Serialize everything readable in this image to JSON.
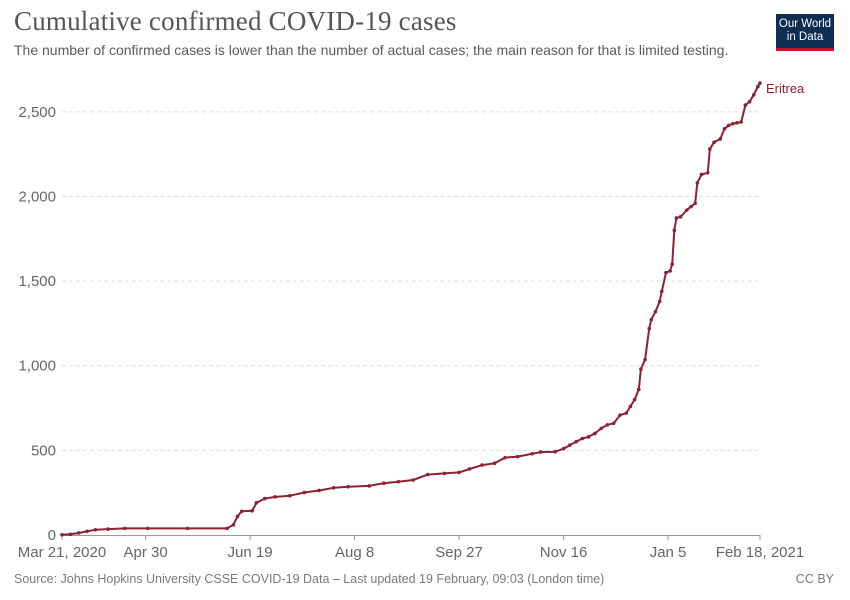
{
  "header": {
    "title": "Cumulative confirmed COVID-19 cases",
    "subtitle": "The number of confirmed cases is lower than the number of actual cases; the main reason for that is limited testing."
  },
  "logo": {
    "line1": "Our World",
    "line2": "in Data"
  },
  "footer": {
    "source": "Source: Johns Hopkins University CSSE COVID-19 Data – Last updated 19 February, 09:03 (London time)",
    "license": "CC BY"
  },
  "colors": {
    "series": "#8b2332",
    "grid": "#dddddd",
    "logo_bg": "#0e2d52",
    "logo_accent": "#c8102e"
  },
  "chart_data": {
    "type": "line",
    "title": "Cumulative confirmed COVID-19 cases",
    "subtitle": "The number of confirmed cases is lower than the number of actual cases; the main reason for that is limited testing.",
    "xlabel": "",
    "ylabel": "",
    "ylim": [
      0,
      2700
    ],
    "yticks": [
      0,
      500,
      1000,
      1500,
      2000,
      2500
    ],
    "ytick_labels": [
      "0",
      "500",
      "1,000",
      "1,500",
      "2,000",
      "2,500"
    ],
    "xlim": [
      "2020-03-21",
      "2021-02-18"
    ],
    "xticks": [
      "2020-03-21",
      "2020-04-30",
      "2020-06-19",
      "2020-08-08",
      "2020-09-27",
      "2020-11-16",
      "2021-01-05",
      "2021-02-18"
    ],
    "xtick_labels": [
      "Mar 21, 2020",
      "Apr 30",
      "Jun 19",
      "Aug 8",
      "Sep 27",
      "Nov 16",
      "Jan 5",
      "Feb 18, 2021"
    ],
    "grid": "horizontal dashed",
    "legend": "end-of-line label",
    "series": [
      {
        "name": "Eritrea",
        "points": [
          [
            "2020-03-21",
            1
          ],
          [
            "2020-03-25",
            4
          ],
          [
            "2020-03-29",
            12
          ],
          [
            "2020-04-02",
            22
          ],
          [
            "2020-04-06",
            31
          ],
          [
            "2020-04-12",
            35
          ],
          [
            "2020-04-20",
            39
          ],
          [
            "2020-05-01",
            39
          ],
          [
            "2020-05-20",
            39
          ],
          [
            "2020-06-08",
            39
          ],
          [
            "2020-06-11",
            60
          ],
          [
            "2020-06-13",
            110
          ],
          [
            "2020-06-15",
            140
          ],
          [
            "2020-06-20",
            143
          ],
          [
            "2020-06-22",
            190
          ],
          [
            "2020-06-26",
            215
          ],
          [
            "2020-07-01",
            225
          ],
          [
            "2020-07-08",
            232
          ],
          [
            "2020-07-15",
            251
          ],
          [
            "2020-07-22",
            263
          ],
          [
            "2020-07-29",
            279
          ],
          [
            "2020-08-05",
            285
          ],
          [
            "2020-08-15",
            290
          ],
          [
            "2020-08-22",
            306
          ],
          [
            "2020-08-29",
            315
          ],
          [
            "2020-09-05",
            325
          ],
          [
            "2020-09-12",
            357
          ],
          [
            "2020-09-20",
            364
          ],
          [
            "2020-09-27",
            370
          ],
          [
            "2020-10-02",
            390
          ],
          [
            "2020-10-08",
            413
          ],
          [
            "2020-10-14",
            424
          ],
          [
            "2020-10-19",
            457
          ],
          [
            "2020-10-25",
            463
          ],
          [
            "2020-11-01",
            480
          ],
          [
            "2020-11-05",
            490
          ],
          [
            "2020-11-12",
            492
          ],
          [
            "2020-11-16",
            510
          ],
          [
            "2020-11-19",
            531
          ],
          [
            "2020-11-22",
            551
          ],
          [
            "2020-11-25",
            570
          ],
          [
            "2020-11-28",
            580
          ],
          [
            "2020-12-01",
            600
          ],
          [
            "2020-12-04",
            630
          ],
          [
            "2020-12-07",
            651
          ],
          [
            "2020-12-10",
            660
          ],
          [
            "2020-12-13",
            708
          ],
          [
            "2020-12-16",
            720
          ],
          [
            "2020-12-18",
            760
          ],
          [
            "2020-12-20",
            800
          ],
          [
            "2020-12-22",
            860
          ],
          [
            "2020-12-23",
            980
          ],
          [
            "2020-12-25",
            1036
          ],
          [
            "2020-12-27",
            1220
          ],
          [
            "2020-12-28",
            1273
          ],
          [
            "2020-12-30",
            1320
          ],
          [
            "2021-01-01",
            1380
          ],
          [
            "2021-01-02",
            1440
          ],
          [
            "2021-01-04",
            1550
          ],
          [
            "2021-01-06",
            1560
          ],
          [
            "2021-01-07",
            1600
          ],
          [
            "2021-01-08",
            1800
          ],
          [
            "2021-01-09",
            1873
          ],
          [
            "2021-01-11",
            1880
          ],
          [
            "2021-01-14",
            1920
          ],
          [
            "2021-01-16",
            1940
          ],
          [
            "2021-01-18",
            1960
          ],
          [
            "2021-01-19",
            2080
          ],
          [
            "2021-01-21",
            2130
          ],
          [
            "2021-01-24",
            2140
          ],
          [
            "2021-01-25",
            2280
          ],
          [
            "2021-01-27",
            2320
          ],
          [
            "2021-01-30",
            2340
          ],
          [
            "2021-02-01",
            2400
          ],
          [
            "2021-02-03",
            2420
          ],
          [
            "2021-02-05",
            2430
          ],
          [
            "2021-02-07",
            2435
          ],
          [
            "2021-02-09",
            2440
          ],
          [
            "2021-02-11",
            2540
          ],
          [
            "2021-02-13",
            2560
          ],
          [
            "2021-02-15",
            2600
          ],
          [
            "2021-02-17",
            2650
          ],
          [
            "2021-02-18",
            2670
          ]
        ]
      }
    ]
  }
}
